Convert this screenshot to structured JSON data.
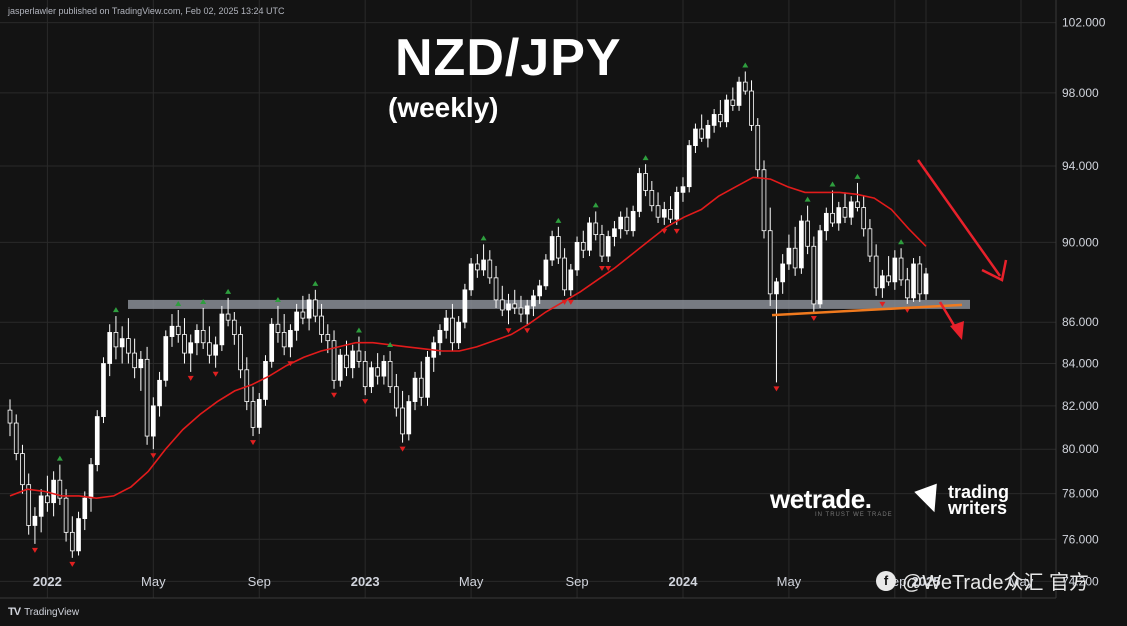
{
  "header": {
    "publisher_line": "jasperlawler published on TradingView.com, Feb 02, 2025 13:24 UTC"
  },
  "footer": {
    "brand": "TradingView",
    "brand_icon": "tradingview-logo-icon"
  },
  "overlay": {
    "title": "NZD/JPY",
    "subtitle": "(weekly)",
    "logo_wetrade": "wetrade.",
    "logo_wetrade_tagline": "IN TRUST WE TRADE",
    "logo_trading_writers": [
      "trading",
      "writers"
    ],
    "watermark": "@WeTrade众汇 官方"
  },
  "chart_data": {
    "type": "candlestick",
    "title": "NZD/JPY",
    "subtitle": "(weekly)",
    "y_ticks": [
      "102.000",
      "98.000",
      "94.000",
      "90.000",
      "86.000",
      "84.000",
      "82.000",
      "80.000",
      "78.000",
      "76.000",
      "74.200"
    ],
    "x_ticks": [
      "2022",
      "May",
      "Sep",
      "2023",
      "May",
      "Sep",
      "2024",
      "May",
      "Sep",
      "2025",
      "May"
    ],
    "x_range": [
      "2021-11",
      "2025-06"
    ],
    "y_range": [
      73.5,
      102.5
    ],
    "y_scale": "log",
    "grid": true,
    "colors": {
      "background": "#131313",
      "up": "#ffffff",
      "down": "#131313",
      "ma": "#e21b1b",
      "support_band": "#8a8e97",
      "trendline": "#f07a1e",
      "arrow": "#e8212b",
      "up_marker": "#2e9e3e",
      "down_marker": "#e02020",
      "grid": "#2a2a2a"
    },
    "candles_ohlc": [
      [
        81.8,
        82.3,
        80.6,
        81.2
      ],
      [
        81.2,
        81.6,
        79.5,
        79.8
      ],
      [
        79.8,
        80.2,
        78.0,
        78.4
      ],
      [
        78.4,
        78.9,
        76.2,
        76.6
      ],
      [
        76.6,
        77.4,
        75.8,
        77.0
      ],
      [
        77.0,
        78.2,
        76.3,
        77.9
      ],
      [
        77.9,
        78.8,
        77.2,
        77.6
      ],
      [
        77.6,
        79.0,
        77.0,
        78.6
      ],
      [
        78.6,
        79.3,
        77.5,
        77.8
      ],
      [
        77.8,
        78.2,
        75.9,
        76.3
      ],
      [
        76.3,
        77.0,
        75.2,
        75.5
      ],
      [
        75.5,
        77.2,
        75.3,
        76.9
      ],
      [
        76.9,
        78.1,
        76.4,
        77.8
      ],
      [
        77.8,
        79.6,
        77.2,
        79.3
      ],
      [
        79.3,
        81.8,
        79.0,
        81.5
      ],
      [
        81.5,
        84.3,
        81.2,
        84.0
      ],
      [
        84.0,
        85.9,
        83.4,
        85.5
      ],
      [
        85.5,
        86.3,
        84.2,
        84.8
      ],
      [
        84.8,
        85.8,
        84.0,
        85.2
      ],
      [
        85.2,
        86.2,
        84.0,
        84.5
      ],
      [
        84.5,
        85.2,
        83.3,
        83.8
      ],
      [
        83.8,
        84.6,
        82.7,
        84.2
      ],
      [
        84.2,
        84.8,
        80.2,
        80.6
      ],
      [
        80.6,
        82.4,
        80.0,
        82.0
      ],
      [
        82.0,
        83.6,
        81.5,
        83.2
      ],
      [
        83.2,
        85.6,
        82.9,
        85.3
      ],
      [
        85.3,
        86.4,
        84.8,
        85.8
      ],
      [
        85.8,
        86.6,
        85.0,
        85.4
      ],
      [
        85.4,
        86.2,
        84.0,
        84.5
      ],
      [
        84.5,
        85.4,
        83.6,
        85.0
      ],
      [
        85.0,
        85.9,
        84.4,
        85.6
      ],
      [
        85.6,
        86.7,
        84.7,
        85.0
      ],
      [
        85.0,
        85.8,
        84.0,
        84.4
      ],
      [
        84.4,
        85.3,
        83.8,
        84.9
      ],
      [
        84.9,
        86.8,
        84.6,
        86.4
      ],
      [
        86.4,
        87.2,
        85.8,
        86.1
      ],
      [
        86.1,
        86.5,
        84.9,
        85.4
      ],
      [
        85.4,
        85.8,
        83.3,
        83.7
      ],
      [
        83.7,
        84.3,
        81.8,
        82.2
      ],
      [
        82.2,
        82.9,
        80.6,
        81.0
      ],
      [
        81.0,
        82.6,
        80.7,
        82.3
      ],
      [
        82.3,
        84.4,
        82.0,
        84.1
      ],
      [
        84.1,
        86.2,
        83.8,
        85.9
      ],
      [
        85.9,
        86.8,
        85.0,
        85.5
      ],
      [
        85.5,
        86.4,
        84.4,
        84.8
      ],
      [
        84.8,
        85.9,
        84.3,
        85.6
      ],
      [
        85.6,
        86.9,
        85.1,
        86.5
      ],
      [
        86.5,
        87.3,
        85.9,
        86.2
      ],
      [
        86.2,
        87.4,
        85.6,
        87.1
      ],
      [
        87.1,
        87.6,
        86.0,
        86.3
      ],
      [
        86.3,
        86.9,
        85.0,
        85.4
      ],
      [
        85.4,
        85.9,
        84.5,
        85.1
      ],
      [
        85.1,
        85.6,
        82.8,
        83.2
      ],
      [
        83.2,
        84.7,
        82.9,
        84.4
      ],
      [
        84.4,
        85.1,
        83.4,
        83.8
      ],
      [
        83.8,
        84.9,
        83.3,
        84.6
      ],
      [
        84.6,
        85.3,
        83.8,
        84.1
      ],
      [
        84.1,
        84.6,
        82.5,
        82.9
      ],
      [
        82.9,
        84.1,
        82.6,
        83.8
      ],
      [
        83.8,
        84.5,
        83.0,
        83.4
      ],
      [
        83.4,
        84.4,
        83.0,
        84.1
      ],
      [
        84.1,
        84.6,
        82.6,
        82.9
      ],
      [
        82.9,
        83.5,
        81.5,
        81.9
      ],
      [
        81.9,
        82.7,
        80.3,
        80.7
      ],
      [
        80.7,
        82.5,
        80.4,
        82.2
      ],
      [
        82.2,
        83.6,
        81.8,
        83.3
      ],
      [
        83.3,
        84.1,
        82.0,
        82.4
      ],
      [
        82.4,
        84.6,
        82.0,
        84.3
      ],
      [
        84.3,
        85.3,
        83.6,
        85.0
      ],
      [
        85.0,
        85.9,
        84.4,
        85.6
      ],
      [
        85.6,
        86.6,
        85.2,
        86.2
      ],
      [
        86.2,
        86.9,
        84.6,
        85.0
      ],
      [
        85.0,
        86.3,
        84.7,
        86.0
      ],
      [
        86.0,
        87.9,
        85.7,
        87.6
      ],
      [
        87.6,
        89.2,
        87.3,
        88.9
      ],
      [
        88.9,
        89.4,
        88.2,
        88.6
      ],
      [
        88.6,
        89.9,
        88.3,
        89.1
      ],
      [
        89.1,
        89.6,
        87.9,
        88.2
      ],
      [
        88.2,
        88.8,
        86.7,
        87.1
      ],
      [
        87.1,
        87.8,
        86.3,
        86.6
      ],
      [
        86.6,
        87.4,
        85.9,
        86.9
      ],
      [
        86.9,
        87.6,
        86.4,
        86.7
      ],
      [
        86.7,
        87.3,
        86.0,
        86.4
      ],
      [
        86.4,
        87.1,
        85.9,
        86.8
      ],
      [
        86.8,
        87.6,
        86.3,
        87.3
      ],
      [
        87.3,
        88.1,
        86.9,
        87.8
      ],
      [
        87.8,
        89.4,
        87.6,
        89.1
      ],
      [
        89.1,
        90.6,
        88.8,
        90.3
      ],
      [
        90.3,
        90.8,
        88.9,
        89.2
      ],
      [
        89.2,
        89.7,
        87.3,
        87.6
      ],
      [
        87.6,
        88.9,
        87.3,
        88.6
      ],
      [
        88.6,
        90.3,
        88.3,
        90.0
      ],
      [
        90.0,
        90.6,
        89.2,
        89.6
      ],
      [
        89.6,
        91.3,
        89.3,
        91.0
      ],
      [
        91.0,
        91.6,
        90.1,
        90.4
      ],
      [
        90.4,
        90.9,
        89.0,
        89.3
      ],
      [
        89.3,
        90.6,
        89.0,
        90.3
      ],
      [
        90.3,
        91.1,
        89.8,
        90.7
      ],
      [
        90.7,
        91.6,
        90.2,
        91.3
      ],
      [
        91.3,
        91.8,
        90.4,
        90.6
      ],
      [
        90.6,
        91.9,
        90.3,
        91.6
      ],
      [
        91.6,
        93.9,
        91.3,
        93.6
      ],
      [
        93.6,
        94.1,
        92.4,
        92.7
      ],
      [
        92.7,
        93.2,
        91.6,
        91.9
      ],
      [
        91.9,
        92.6,
        91.0,
        91.3
      ],
      [
        91.3,
        92.1,
        90.9,
        91.7
      ],
      [
        91.7,
        92.4,
        91.0,
        91.2
      ],
      [
        91.2,
        92.9,
        90.9,
        92.6
      ],
      [
        92.6,
        93.4,
        92.1,
        92.9
      ],
      [
        92.9,
        95.4,
        92.6,
        95.1
      ],
      [
        95.1,
        96.3,
        94.7,
        96.0
      ],
      [
        96.0,
        96.8,
        95.3,
        95.5
      ],
      [
        95.5,
        96.5,
        95.0,
        96.2
      ],
      [
        96.2,
        97.1,
        95.8,
        96.8
      ],
      [
        96.8,
        97.6,
        96.1,
        96.4
      ],
      [
        96.4,
        97.9,
        96.1,
        97.6
      ],
      [
        97.6,
        98.3,
        97.0,
        97.3
      ],
      [
        97.3,
        98.9,
        97.0,
        98.6
      ],
      [
        98.6,
        99.2,
        97.9,
        98.1
      ],
      [
        98.1,
        98.7,
        95.9,
        96.2
      ],
      [
        96.2,
        96.6,
        93.4,
        93.8
      ],
      [
        93.8,
        94.3,
        90.2,
        90.6
      ],
      [
        90.6,
        91.8,
        86.8,
        87.4
      ],
      [
        87.4,
        88.2,
        83.1,
        88.0
      ],
      [
        88.0,
        89.4,
        87.4,
        88.9
      ],
      [
        88.9,
        90.4,
        88.6,
        89.7
      ],
      [
        89.7,
        90.8,
        88.3,
        88.7
      ],
      [
        88.7,
        91.4,
        88.4,
        91.1
      ],
      [
        91.1,
        91.9,
        89.4,
        89.8
      ],
      [
        89.8,
        90.3,
        86.5,
        86.9
      ],
      [
        86.9,
        90.9,
        86.7,
        90.6
      ],
      [
        90.6,
        91.8,
        90.1,
        91.5
      ],
      [
        91.5,
        92.7,
        90.8,
        91.0
      ],
      [
        91.0,
        92.1,
        90.6,
        91.8
      ],
      [
        91.8,
        92.6,
        91.0,
        91.3
      ],
      [
        91.3,
        92.4,
        90.9,
        92.1
      ],
      [
        92.1,
        93.1,
        91.6,
        91.8
      ],
      [
        91.8,
        92.4,
        90.3,
        90.7
      ],
      [
        90.7,
        91.2,
        89.0,
        89.3
      ],
      [
        89.3,
        89.9,
        87.3,
        87.7
      ],
      [
        87.7,
        88.6,
        87.2,
        88.3
      ],
      [
        88.3,
        89.3,
        87.8,
        88.0
      ],
      [
        88.0,
        89.6,
        87.6,
        89.2
      ],
      [
        89.2,
        89.7,
        87.8,
        88.1
      ],
      [
        88.1,
        88.7,
        86.9,
        87.2
      ],
      [
        87.2,
        89.2,
        87.0,
        88.9
      ],
      [
        88.9,
        89.3,
        87.0,
        87.4
      ],
      [
        87.4,
        88.7,
        87.1,
        88.4
      ]
    ],
    "ma_series": [
      77.9,
      78.2,
      78.1,
      77.9,
      77.9,
      77.8,
      77.9,
      78.3,
      79.0,
      80.0,
      80.9,
      81.6,
      82.2,
      82.7,
      83.0,
      83.4,
      83.9,
      84.3,
      84.6,
      84.8,
      85.0,
      85.0,
      84.9,
      84.8,
      84.7,
      84.6,
      84.6,
      84.8,
      85.1,
      85.4,
      85.9,
      86.5,
      87.0,
      87.5,
      88.1,
      88.7,
      89.4,
      90.1,
      90.8,
      91.3,
      91.7,
      92.4,
      92.9,
      93.4,
      93.3,
      92.9,
      92.6,
      92.6,
      92.6,
      92.5,
      92.3,
      91.7,
      90.7,
      89.8
    ],
    "support_level": 86.9,
    "trendline_values": [
      86.35,
      86.85
    ]
  }
}
